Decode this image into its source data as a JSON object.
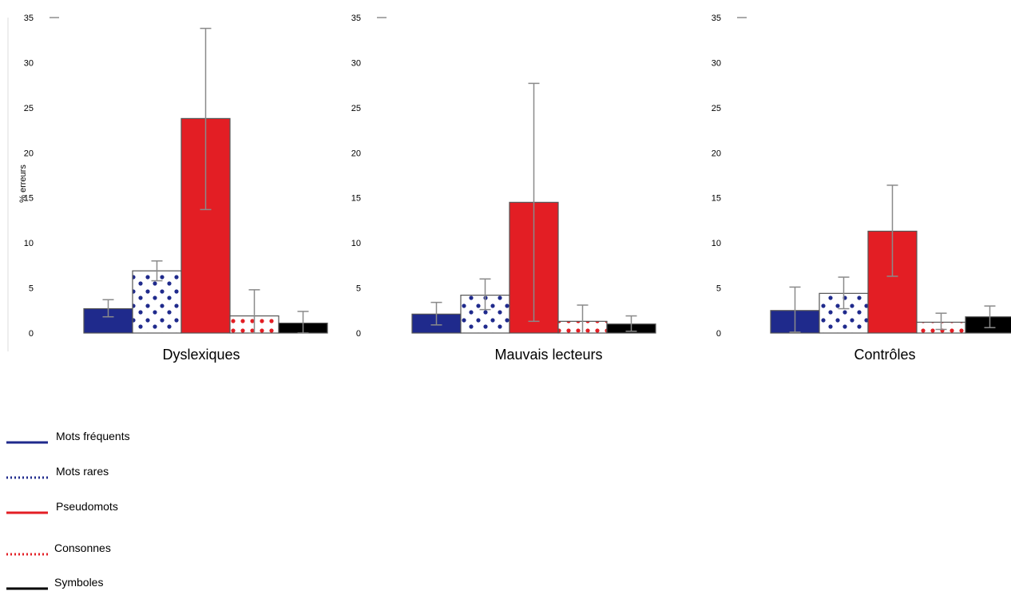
{
  "chart_data": [
    {
      "type": "bar",
      "title": "Dyslexiques",
      "ylabel": "% erreurs",
      "ylim": [
        0,
        35
      ],
      "yticks": [
        0,
        5,
        10,
        15,
        20,
        25,
        30,
        35
      ],
      "bars": [
        {
          "series": "Mots fréquents",
          "value": 2.7,
          "err_low": 1.8,
          "err_high": 3.7
        },
        {
          "series": "Mots rares",
          "value": 6.9,
          "err_low": 5.8,
          "err_high": 8.0
        },
        {
          "series": "Pseudomots",
          "value": 23.8,
          "err_low": 13.7,
          "err_high": 33.8
        },
        {
          "series": "Consonnes",
          "value": 1.9,
          "err_low": 0.0,
          "err_high": 4.8
        },
        {
          "series": "Symboles",
          "value": 1.1,
          "err_low": 0.0,
          "err_high": 2.4
        }
      ]
    },
    {
      "type": "bar",
      "title": "Mauvais lecteurs",
      "ylabel": "",
      "ylim": [
        0,
        35
      ],
      "yticks": [
        0,
        5,
        10,
        15,
        20,
        25,
        30,
        35
      ],
      "bars": [
        {
          "series": "Mots fréquents",
          "value": 2.1,
          "err_low": 0.9,
          "err_high": 3.4
        },
        {
          "series": "Mots rares",
          "value": 4.2,
          "err_low": 2.6,
          "err_high": 6.0
        },
        {
          "series": "Pseudomots",
          "value": 14.5,
          "err_low": 1.3,
          "err_high": 27.7
        },
        {
          "series": "Consonnes",
          "value": 1.3,
          "err_low": 0.0,
          "err_high": 3.1
        },
        {
          "series": "Symboles",
          "value": 1.0,
          "err_low": 0.2,
          "err_high": 1.9
        }
      ]
    },
    {
      "type": "bar",
      "title": "Contrôles",
      "ylabel": "",
      "ylim": [
        0,
        35
      ],
      "yticks": [
        0,
        5,
        10,
        15,
        20,
        25,
        30,
        35
      ],
      "bars": [
        {
          "series": "Mots fréquents",
          "value": 2.5,
          "err_low": 0.1,
          "err_high": 5.1
        },
        {
          "series": "Mots rares",
          "value": 4.4,
          "err_low": 2.7,
          "err_high": 6.2
        },
        {
          "series": "Pseudomots",
          "value": 11.3,
          "err_low": 6.3,
          "err_high": 16.4
        },
        {
          "series": "Consonnes",
          "value": 1.2,
          "err_low": 0.4,
          "err_high": 2.2
        },
        {
          "series": "Symboles",
          "value": 1.8,
          "err_low": 0.6,
          "err_high": 3.0
        }
      ]
    }
  ],
  "legend": {
    "placement": "bottom-left",
    "items": [
      {
        "label": "Mots fréquents",
        "color": "#1f2a8c",
        "style": "solid"
      },
      {
        "label": "Mots rares",
        "color": "#1f2a8c",
        "style": "dotted"
      },
      {
        "label": "Pseudomots",
        "color": "#e31e24",
        "style": "solid"
      },
      {
        "label": "Consonnes",
        "color": "#e31e24",
        "style": "dotted"
      },
      {
        "label": "Symboles",
        "color": "#000000",
        "style": "solid"
      }
    ]
  },
  "colors": {
    "blue": "#1f2a8c",
    "red": "#e31e24",
    "black": "#000000",
    "error_bar": "#8a8a8a",
    "bar_border": "#555555"
  }
}
